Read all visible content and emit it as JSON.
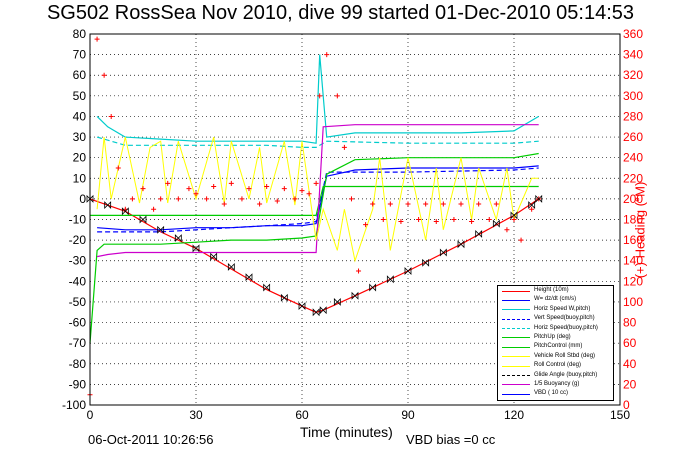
{
  "title": "SG502 RossSea Nov 2010, dive 99 started 01-Dec-2010 05:14:53",
  "footer": {
    "timestamp": "06-Oct-2011 10:26:56",
    "vbd_bias": "VBD bias =0 cc"
  },
  "chart_data": {
    "type": "line",
    "xlabel": "Time (minutes)",
    "ylabel_right": "(+) Heading (°M)",
    "xlim": [
      0,
      150
    ],
    "ylim_left": [
      -100,
      80
    ],
    "ylim_right": [
      0,
      360
    ],
    "x_ticks": [
      "0",
      "30",
      "60",
      "90",
      "120",
      "150"
    ],
    "y_left_ticks": [
      "80",
      "70",
      "60",
      "50",
      "40",
      "30",
      "20",
      "10",
      "0",
      "-10",
      "-20",
      "-30",
      "-40",
      "-50",
      "-60",
      "-70",
      "-80",
      "-90",
      "-100"
    ],
    "y_right_ticks": [
      "360",
      "340",
      "320",
      "300",
      "280",
      "260",
      "240",
      "220",
      "200",
      "180",
      "160",
      "140",
      "120",
      "100",
      "80",
      "60",
      "40",
      "20",
      "0"
    ],
    "grid": true,
    "legend_position": "bottom-right",
    "legend": [
      {
        "label": "Height (10m)",
        "color": "#ff0000",
        "style": "solid"
      },
      {
        "label": "W= dz/dt (cm/s)",
        "color": "#0000ff",
        "style": "solid"
      },
      {
        "label": "Horiz Speed W,pitch)",
        "color": "#00cccc",
        "style": "solid"
      },
      {
        "label": "Vert Speed(buoy,pitch)",
        "color": "#0000ff",
        "style": "dashed"
      },
      {
        "label": "Horiz Speed(buoy,pitch)",
        "color": "#00cccc",
        "style": "dashed"
      },
      {
        "label": "PitchUp (deg)",
        "color": "#00cc00",
        "style": "solid"
      },
      {
        "label": "PitchControl (mm)",
        "color": "#00cc00",
        "style": "solid"
      },
      {
        "label": "Vehicle Roll Stbd (deg)",
        "color": "#ffff00",
        "style": "solid"
      },
      {
        "label": "Roll Control (deg)",
        "color": "#ffff00",
        "style": "solid"
      },
      {
        "label": "Glide Angle (buoy,pitch)",
        "color": "#000000",
        "style": "dashed"
      },
      {
        "label": "1/5 Buoyancy (g)",
        "color": "#cc00cc",
        "style": "solid"
      },
      {
        "label": "VBD ( 10 cc)",
        "color": "#0000ff",
        "style": "solid"
      }
    ],
    "colors": {
      "height": "#ff0000",
      "w": "#0000ff",
      "horiz": "#00cccc",
      "pitch": "#00cc00",
      "roll": "#ffff00",
      "buoy": "#cc00cc",
      "heading": "#ff0000",
      "depth_markers": "#000000"
    },
    "series": [
      {
        "key": "height",
        "name": "Height (10m)",
        "color": "#ff0000",
        "x": [
          0,
          10,
          20,
          30,
          40,
          50,
          60,
          64,
          66,
          75,
          90,
          105,
          120,
          127
        ],
        "y": [
          0,
          -6,
          -16,
          -24,
          -34,
          -44,
          -52,
          -55,
          -54,
          -47,
          -35,
          -22,
          -8,
          0
        ]
      },
      {
        "key": "w",
        "name": "W= dz/dt (cm/s)",
        "color": "#0000ff",
        "x": [
          2,
          10,
          20,
          30,
          40,
          50,
          60,
          64,
          67,
          75,
          90,
          105,
          120,
          127
        ],
        "y": [
          -14,
          -15,
          -15,
          -14,
          -14,
          -13,
          -13,
          -12,
          11,
          14,
          15,
          15,
          15,
          16
        ]
      },
      {
        "key": "horiz",
        "name": "Horiz Speed W,pitch)",
        "color": "#00cccc",
        "x": [
          2,
          5,
          10,
          20,
          30,
          40,
          50,
          60,
          64,
          65,
          67,
          75,
          90,
          105,
          120,
          127
        ],
        "y": [
          40,
          35,
          30,
          29,
          28,
          28,
          28,
          28,
          27,
          70,
          30,
          32,
          32,
          32,
          33,
          40
        ]
      },
      {
        "key": "horiz_buoy",
        "name": "Horiz Speed(buoy,pitch)",
        "color": "#00cccc",
        "x": [
          2,
          10,
          20,
          30,
          40,
          50,
          60,
          64,
          67,
          90,
          120,
          127
        ],
        "y": [
          30,
          26,
          26,
          26,
          26,
          26,
          25,
          25,
          28,
          27,
          27,
          28
        ]
      },
      {
        "key": "vert_buoy",
        "name": "Vert Speed(buoy,pitch)",
        "color": "#0000ff",
        "x": [
          2,
          10,
          20,
          30,
          40,
          50,
          60,
          64,
          67,
          90,
          120,
          127
        ],
        "y": [
          -16,
          -16,
          -16,
          -15,
          -14,
          -13,
          -12,
          -11,
          13,
          13,
          14,
          15
        ]
      },
      {
        "key": "pitch",
        "name": "PitchUp (deg)",
        "color": "#00cc00",
        "x": [
          0,
          2,
          4,
          10,
          20,
          30,
          40,
          50,
          60,
          64,
          67,
          75,
          90,
          105,
          120,
          127
        ],
        "y": [
          -70,
          -25,
          -22,
          -22,
          -22,
          -21,
          -20,
          -20,
          -19,
          -18,
          12,
          19,
          20,
          20,
          20,
          22
        ]
      },
      {
        "key": "pitchcontrol",
        "name": "PitchControl (mm)",
        "color": "#00cc00",
        "x": [
          0,
          3,
          10,
          30,
          60,
          64,
          66,
          90,
          120,
          127
        ],
        "y": [
          -8,
          -8,
          -8,
          -8,
          -8,
          -8,
          6,
          6,
          6,
          6
        ]
      },
      {
        "key": "buoy",
        "name": "1/5 Buoyancy (g)",
        "color": "#cc00cc",
        "x": [
          2,
          5,
          10,
          30,
          50,
          64,
          66,
          75,
          90,
          105,
          120,
          127
        ],
        "y": [
          -28,
          -27,
          -26,
          -26,
          -26,
          -26,
          35,
          36,
          36,
          36,
          36,
          36
        ]
      },
      {
        "key": "roll",
        "name": "Vehicle Roll Stbd (deg)",
        "color": "#ffff00",
        "x": [
          2,
          4,
          6,
          10,
          14,
          17,
          20,
          22,
          25,
          30,
          35,
          38,
          40,
          45,
          48,
          50,
          55,
          58,
          60,
          64,
          66,
          70,
          72,
          75,
          80,
          82,
          85,
          90,
          95,
          98,
          100,
          105,
          108,
          110,
          115,
          118,
          120,
          125,
          127
        ],
        "y": [
          -5,
          30,
          0,
          30,
          -2,
          25,
          28,
          -2,
          28,
          0,
          30,
          -2,
          28,
          0,
          25,
          -2,
          28,
          -3,
          28,
          -20,
          -5,
          -25,
          -5,
          -30,
          -5,
          20,
          -25,
          20,
          -20,
          15,
          -15,
          20,
          -10,
          15,
          -10,
          15,
          -10,
          10,
          10
        ]
      },
      {
        "key": "heading",
        "name": "(+) Heading (°M)",
        "axis": "right",
        "color": "#ff0000",
        "x": [
          0,
          2,
          4,
          6,
          8,
          10,
          12,
          15,
          18,
          20,
          22,
          25,
          28,
          30,
          33,
          35,
          38,
          40,
          43,
          45,
          48,
          50,
          53,
          55,
          58,
          60,
          62,
          64,
          65,
          67,
          70,
          72,
          74,
          76,
          78,
          80,
          83,
          85,
          88,
          90,
          93,
          95,
          98,
          100,
          103,
          105,
          108,
          110,
          113,
          115,
          118,
          120,
          122,
          125,
          127
        ],
        "y": [
          10,
          355,
          320,
          280,
          230,
          190,
          200,
          210,
          190,
          200,
          215,
          200,
          210,
          205,
          200,
          212,
          195,
          215,
          200,
          210,
          195,
          212,
          198,
          210,
          200,
          208,
          205,
          215,
          300,
          340,
          300,
          250,
          200,
          130,
          175,
          195,
          180,
          195,
          178,
          195,
          180,
          195,
          178,
          195,
          180,
          195,
          178,
          195,
          180,
          195,
          170,
          180,
          160,
          190,
          200
        ]
      }
    ],
    "depth_markers": {
      "x": [
        0,
        5,
        10,
        15,
        20,
        25,
        30,
        35,
        40,
        45,
        50,
        55,
        60,
        64,
        66,
        70,
        75,
        80,
        85,
        90,
        95,
        100,
        105,
        110,
        115,
        120,
        125,
        127
      ],
      "y": [
        0,
        -3,
        -6,
        -10,
        -15,
        -19,
        -24,
        -28,
        -33,
        -38,
        -43,
        -48,
        -52,
        -55,
        -54,
        -50,
        -47,
        -43,
        -39,
        -35,
        -31,
        -26,
        -22,
        -17,
        -12,
        -8,
        -3,
        0
      ]
    }
  }
}
